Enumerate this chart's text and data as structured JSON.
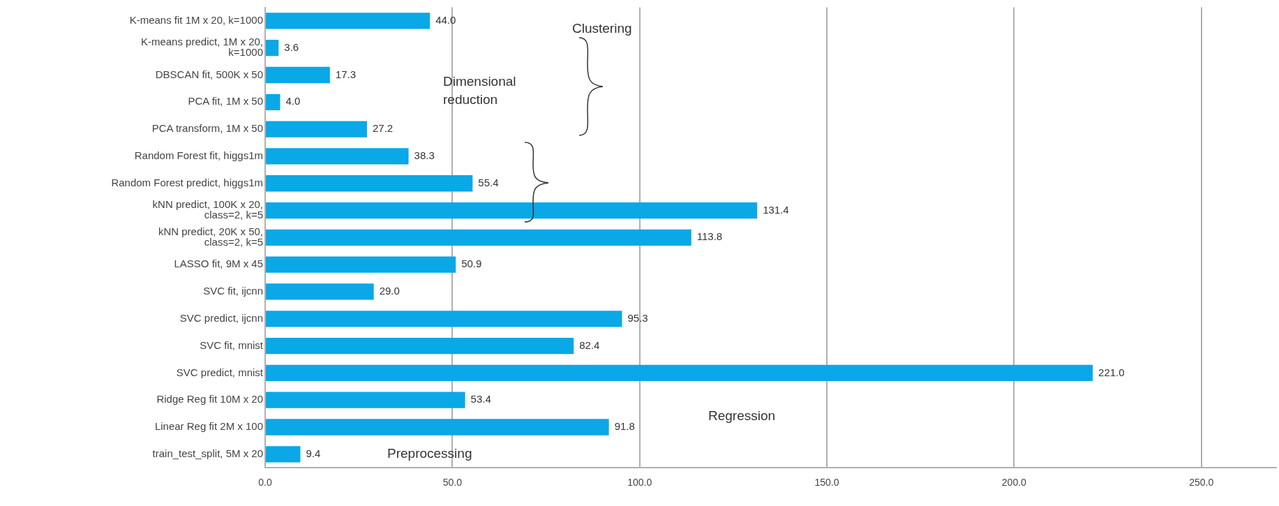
{
  "chart_data": {
    "type": "bar",
    "orientation": "horizontal",
    "categories": [
      "K-means fit 1M x 20, k=1000",
      "K-means predict, 1M x 20, k=1000",
      "DBSCAN fit, 500K x 50",
      "PCA fit, 1M x 50",
      "PCA transform, 1M x 50",
      "Random Forest fit, higgs1m",
      "Random Forest predict, higgs1m",
      "kNN predict, 100K x 20, class=2, k=5",
      "kNN predict, 20K x 50, class=2, k=5",
      "LASSO fit, 9M x 45",
      "SVC fit, ijcnn",
      "SVC predict, ijcnn",
      "SVC fit, mnist",
      "SVC predict, mnist",
      "Ridge Reg fit 10M x 20",
      "Linear Reg fit 2M x 100",
      "train_test_split, 5M x 20"
    ],
    "values": [
      44.0,
      3.6,
      17.3,
      4.0,
      27.2,
      38.3,
      55.4,
      131.4,
      113.8,
      50.9,
      29.0,
      95.3,
      82.4,
      221.0,
      53.4,
      91.8,
      9.4
    ],
    "value_labels": [
      "44.0",
      "3.6",
      "17.3",
      "4.0",
      "27.2",
      "38.3",
      "55.4",
      "131.4",
      "113.8",
      "50.9",
      "29.0",
      "95.3",
      "82.4",
      "221.0",
      "53.4",
      "91.8",
      "9.4"
    ],
    "color": "#0aa8e6",
    "xlim": [
      0,
      270
    ],
    "xticks": [
      {
        "value": 0,
        "label": "0.0"
      },
      {
        "value": 50,
        "label": "50.0"
      },
      {
        "value": 100,
        "label": "100.0"
      },
      {
        "value": 150,
        "label": "150.0"
      },
      {
        "value": 200,
        "label": "200.0"
      },
      {
        "value": 250,
        "label": "250.0"
      }
    ],
    "grid": "x",
    "legend": false,
    "annotations": [
      "Clustering",
      "Dimensional\nreduction",
      "Regression",
      "Preprocessing"
    ]
  }
}
